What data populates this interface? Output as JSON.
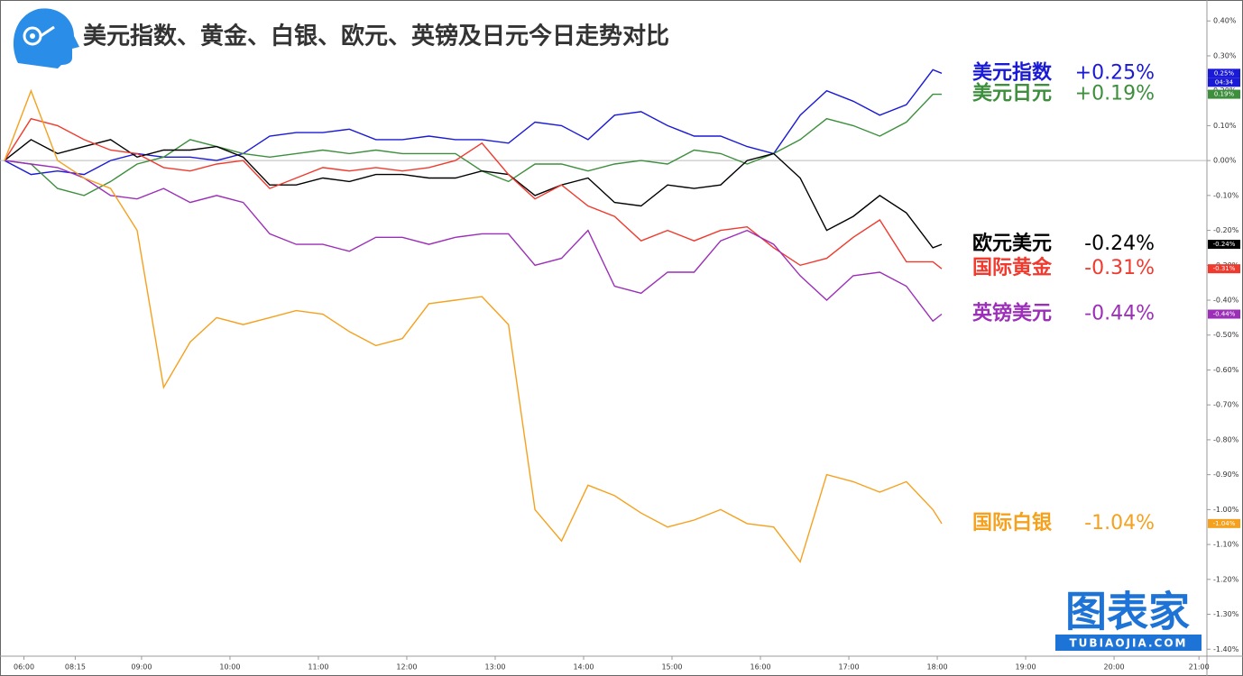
{
  "chart_data": {
    "type": "line",
    "title": "美元指数、黄金、白银、欧元、英镑及日元今日走势对比",
    "x": [
      0,
      3,
      6,
      9,
      12,
      15,
      18,
      21,
      24,
      27,
      30,
      33,
      36,
      39,
      42,
      45,
      48,
      51,
      54,
      57,
      60,
      63,
      66,
      69,
      72,
      75,
      78,
      81,
      84,
      87,
      90,
      93,
      96,
      99,
      102,
      105,
      106
    ],
    "xlim": [
      0,
      136
    ],
    "xticks": [
      {
        "value": 2.2,
        "label": "06:00"
      },
      {
        "value": 8,
        "label": "08:15"
      },
      {
        "value": 15.5,
        "label": "09:00"
      },
      {
        "value": 25.5,
        "label": "10:00"
      },
      {
        "value": 35.5,
        "label": "11:00"
      },
      {
        "value": 45.5,
        "label": "12:00"
      },
      {
        "value": 55.5,
        "label": "13:00"
      },
      {
        "value": 65.5,
        "label": "14:00"
      },
      {
        "value": 75.5,
        "label": "15:00"
      },
      {
        "value": 85.5,
        "label": "16:00"
      },
      {
        "value": 95.5,
        "label": "17:00"
      },
      {
        "value": 105.5,
        "label": "18:00"
      },
      {
        "value": 115.5,
        "label": "19:00"
      },
      {
        "value": 125.5,
        "label": "20:00"
      },
      {
        "value": 135.1,
        "label": "21:00"
      }
    ],
    "ylim": [
      -1.42,
      0.46
    ],
    "yticks": [
      {
        "value": -1.4,
        "label": "-1.40%"
      },
      {
        "value": -1.3,
        "label": "-1.30%"
      },
      {
        "value": -1.2,
        "label": "-1.20%"
      },
      {
        "value": -1.1,
        "label": "-1.10%"
      },
      {
        "value": -1.0,
        "label": "-1.00%"
      },
      {
        "value": -0.9,
        "label": "-0.90%"
      },
      {
        "value": -0.8,
        "label": "-0.80%"
      },
      {
        "value": -0.7,
        "label": "-0.70%"
      },
      {
        "value": -0.6,
        "label": "-0.60%"
      },
      {
        "value": -0.5,
        "label": "-0.50%"
      },
      {
        "value": -0.4,
        "label": "-0.40%"
      },
      {
        "value": -0.3,
        "label": "-0.30%"
      },
      {
        "value": -0.2,
        "label": "-0.20%"
      },
      {
        "value": -0.1,
        "label": "-0.10%"
      },
      {
        "value": 0,
        "label": "0.00%"
      },
      {
        "value": 0.1,
        "label": "0.10%"
      },
      {
        "value": 0.2,
        "label": "0.20%"
      },
      {
        "value": 0.3,
        "label": "0.30%"
      },
      {
        "value": 0.4,
        "label": "0.40%"
      }
    ],
    "series": [
      {
        "name": "美元指数",
        "label": "+0.25%",
        "tag": "0.25%",
        "color": "#1a1ad6",
        "values": [
          0,
          -0.04,
          -0.03,
          -0.04,
          0,
          0.02,
          0.01,
          0.01,
          0,
          0.02,
          0.07,
          0.08,
          0.08,
          0.09,
          0.06,
          0.06,
          0.07,
          0.06,
          0.06,
          0.05,
          0.11,
          0.1,
          0.06,
          0.13,
          0.14,
          0.1,
          0.07,
          0.07,
          0.04,
          0.02,
          0.13,
          0.2,
          0.17,
          0.13,
          0.16,
          0.26,
          0.25
        ]
      },
      {
        "name": "美元日元",
        "label": "+0.19%",
        "tag": "0.19%",
        "color": "#3d8f3d",
        "values": [
          0,
          -0.01,
          -0.08,
          -0.1,
          -0.06,
          -0.01,
          0.01,
          0.06,
          0.04,
          0.02,
          0.01,
          0.02,
          0.03,
          0.02,
          0.03,
          0.02,
          0.02,
          0.02,
          -0.03,
          -0.06,
          -0.01,
          -0.01,
          -0.03,
          -0.01,
          0,
          -0.01,
          0.03,
          0.02,
          -0.01,
          0.02,
          0.06,
          0.12,
          0.1,
          0.07,
          0.11,
          0.19,
          0.19
        ]
      },
      {
        "name": "欧元美元",
        "label": "-0.24%",
        "tag": "-0.24%",
        "color": "#000000",
        "values": [
          0,
          0.06,
          0.02,
          0.04,
          0.06,
          0.01,
          0.03,
          0.03,
          0.04,
          0.01,
          -0.07,
          -0.07,
          -0.05,
          -0.06,
          -0.04,
          -0.04,
          -0.05,
          -0.05,
          -0.03,
          -0.04,
          -0.1,
          -0.07,
          -0.05,
          -0.12,
          -0.13,
          -0.07,
          -0.08,
          -0.07,
          0,
          0.02,
          -0.05,
          -0.2,
          -0.16,
          -0.1,
          -0.15,
          -0.25,
          -0.24
        ]
      },
      {
        "name": "国际黄金",
        "label": "-0.31%",
        "tag": "-0.31%",
        "color": "#f03a2e",
        "values": [
          0,
          0.12,
          0.1,
          0.06,
          0.03,
          0.02,
          -0.02,
          -0.03,
          -0.01,
          0,
          -0.08,
          -0.05,
          -0.02,
          -0.03,
          -0.02,
          -0.03,
          -0.02,
          0,
          0.05,
          -0.04,
          -0.11,
          -0.07,
          -0.13,
          -0.16,
          -0.23,
          -0.2,
          -0.23,
          -0.2,
          -0.19,
          -0.25,
          -0.3,
          -0.28,
          -0.22,
          -0.17,
          -0.29,
          -0.29,
          -0.31
        ]
      },
      {
        "name": "英镑美元",
        "label": "-0.44%",
        "tag": "-0.44%",
        "color": "#9c2fb8",
        "values": [
          0,
          -0.01,
          -0.02,
          -0.05,
          -0.1,
          -0.11,
          -0.08,
          -0.12,
          -0.1,
          -0.12,
          -0.21,
          -0.24,
          -0.24,
          -0.26,
          -0.22,
          -0.22,
          -0.24,
          -0.22,
          -0.21,
          -0.21,
          -0.3,
          -0.28,
          -0.2,
          -0.36,
          -0.38,
          -0.32,
          -0.32,
          -0.23,
          -0.2,
          -0.24,
          -0.33,
          -0.4,
          -0.33,
          -0.32,
          -0.36,
          -0.46,
          -0.44
        ]
      },
      {
        "name": "国际白银",
        "label": "-1.04%",
        "tag": "-1.04%",
        "color": "#f5a11e",
        "values": [
          0,
          0.2,
          0,
          -0.05,
          -0.08,
          -0.2,
          -0.65,
          -0.52,
          -0.45,
          -0.47,
          -0.45,
          -0.43,
          -0.44,
          -0.49,
          -0.53,
          -0.51,
          -0.41,
          -0.4,
          -0.39,
          -0.47,
          -1.0,
          -1.09,
          -0.93,
          -0.96,
          -1.01,
          -1.05,
          -1.03,
          -1.0,
          -1.04,
          -1.05,
          -1.15,
          -0.9,
          -0.92,
          -0.95,
          -0.92,
          -1.0,
          -1.04
        ]
      }
    ],
    "countdown": "04:34",
    "watermark": {
      "text": "图表家",
      "url": "TUBIAOJIA.COM"
    }
  }
}
